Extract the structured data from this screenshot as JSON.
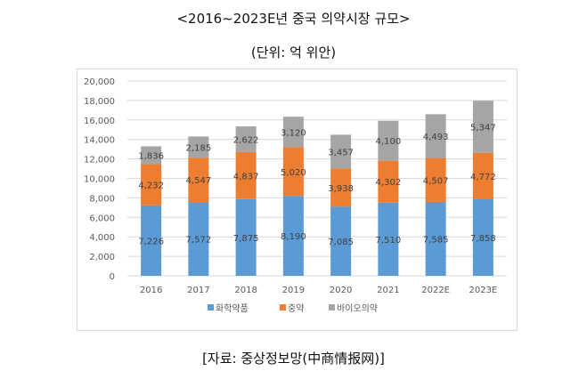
{
  "header": {
    "title": "<2016~2023E년 중국 의약시장 규모>",
    "unit": "(단위: 억 위안)"
  },
  "source": "[자료: 중상정보망(中商情报网)]",
  "chart_data": {
    "type": "bar",
    "stacked": true,
    "title": "<2016~2023E년 중국 의약시장 규모>",
    "subtitle": "(단위: 억 위안)",
    "xlabel": "",
    "ylabel": "",
    "categories": [
      "2016",
      "2017",
      "2018",
      "2019",
      "2020",
      "2021",
      "2022E",
      "2023E"
    ],
    "ylim": [
      0,
      20000
    ],
    "yticks": [
      0,
      2000,
      4000,
      6000,
      8000,
      10000,
      12000,
      14000,
      16000,
      18000,
      20000
    ],
    "ytick_labels": [
      "0",
      "2,000",
      "4,000",
      "6,000",
      "8,000",
      "10,000",
      "12,000",
      "14,000",
      "16,000",
      "18,000",
      "20,000"
    ],
    "grid": true,
    "legend_position": "bottom",
    "series": [
      {
        "name": "화학약품",
        "color": "#5b9bd5",
        "values": [
          7226,
          7572,
          7875,
          8190,
          7085,
          7510,
          7585,
          7858
        ],
        "labels": [
          "7,226",
          "7,572",
          "7,875",
          "8,190",
          "7,085",
          "7,510",
          "7,585",
          "7,858"
        ]
      },
      {
        "name": "중약",
        "color": "#ed7d31",
        "values": [
          4232,
          4547,
          4837,
          5020,
          3938,
          4302,
          4507,
          4772
        ],
        "labels": [
          "4,232",
          "4,547",
          "4,837",
          "5,020",
          "3,938",
          "4,302",
          "4,507",
          "4,772"
        ]
      },
      {
        "name": "바이오의약",
        "color": "#a5a5a5",
        "values": [
          1836,
          2185,
          2622,
          3120,
          3457,
          4100,
          4493,
          5347
        ],
        "labels": [
          "1,836",
          "2,185",
          "2,622",
          "3,120",
          "3,457",
          "4,100",
          "4,493",
          "5,347"
        ]
      }
    ]
  }
}
